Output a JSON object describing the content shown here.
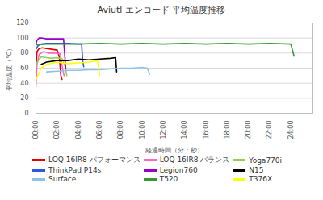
{
  "chart_data": {
    "type": "line",
    "title": "Aviutl エンコード 平均温度推移",
    "x_label": "経過時間（分：秒）",
    "y_label": "平均温度（℃）",
    "xlim": [
      0,
      26
    ],
    "ylim": [
      0,
      120
    ],
    "xticks": [
      {
        "value": 0,
        "label": "00:00"
      },
      {
        "value": 2,
        "label": "02:00"
      },
      {
        "value": 4,
        "label": "04:00"
      },
      {
        "value": 6,
        "label": "06:00"
      },
      {
        "value": 8,
        "label": "08:00"
      },
      {
        "value": 10,
        "label": "10:00"
      },
      {
        "value": 12,
        "label": "12:00"
      },
      {
        "value": 14,
        "label": "14:00"
      },
      {
        "value": 16,
        "label": "16:00"
      },
      {
        "value": 18,
        "label": "18:00"
      },
      {
        "value": 20,
        "label": "20:00"
      },
      {
        "value": 22,
        "label": "22:00"
      },
      {
        "value": 24,
        "label": "24:00"
      }
    ],
    "yticks": [
      0,
      20,
      40,
      60,
      80,
      100,
      120
    ],
    "grid": true,
    "legend": "bottom",
    "series": [
      {
        "name": "LOQ 16IR8 パフォーマンス",
        "color": "#e00000",
        "x": [
          0,
          0.1,
          0.3,
          0.6,
          1,
          1.5,
          2,
          2.2,
          2.35,
          2.45
        ],
        "values": [
          60,
          82,
          86,
          87,
          86,
          85,
          84,
          75,
          50,
          45
        ]
      },
      {
        "name": "LOQ 16IR8 バランス",
        "color": "#ff66cc",
        "x": [
          0,
          0.1,
          0.3,
          0.7,
          1.2,
          1.8,
          2.3,
          2.5,
          2.65
        ],
        "values": [
          35,
          65,
          78,
          82,
          80,
          80,
          79,
          60,
          50
        ]
      },
      {
        "name": "Yoga770i",
        "color": "#92d050",
        "x": [
          0,
          0.2,
          0.5,
          1,
          1.5,
          2,
          2.5,
          2.8,
          2.9
        ],
        "values": [
          62,
          70,
          75,
          74,
          73,
          74,
          72,
          60,
          50
        ]
      },
      {
        "name": "ThinkPad P14s",
        "color": "#2f55e6",
        "x": [
          0,
          0.2,
          0.5,
          1,
          2,
          3,
          4,
          4.3,
          4.4,
          4.5
        ],
        "values": [
          85,
          90,
          92,
          93,
          93,
          93,
          92,
          92,
          70,
          62
        ]
      },
      {
        "name": "Legion760",
        "color": "#9900cc",
        "x": [
          0,
          0.1,
          0.3,
          0.6,
          1,
          1.5,
          2,
          2.6,
          2.7,
          2.8
        ],
        "values": [
          92,
          97,
          100,
          100,
          99,
          99,
          99,
          99,
          80,
          60
        ]
      },
      {
        "name": "N15",
        "color": "#000000",
        "x": [
          0.5,
          1,
          2,
          3,
          4,
          5,
          6,
          7,
          7.5,
          7.6
        ],
        "values": [
          65,
          68,
          70,
          70,
          72,
          71,
          72,
          73,
          74,
          55
        ]
      },
      {
        "name": "Surface",
        "color": "#8fc1e6",
        "x": [
          1,
          2,
          3,
          4,
          5,
          6,
          7,
          8,
          9,
          10,
          10.5,
          10.7
        ],
        "values": [
          55,
          56,
          57,
          57,
          58,
          58,
          59,
          60,
          60,
          61,
          60,
          52
        ]
      },
      {
        "name": "T520",
        "color": "#339933",
        "x": [
          0,
          1,
          2,
          4,
          6,
          8,
          10,
          12,
          14,
          16,
          18,
          20,
          22,
          24,
          24.3
        ],
        "values": [
          91,
          92,
          92,
          92,
          93,
          92,
          93,
          92,
          93,
          92,
          93,
          92,
          93,
          92,
          76
        ]
      },
      {
        "name": "T376X",
        "color": "#ffff00",
        "x": [
          0,
          0.5,
          1,
          2,
          3,
          4,
          5,
          5.8,
          6.0
        ],
        "values": [
          45,
          60,
          65,
          68,
          66,
          67,
          68,
          70,
          50
        ]
      }
    ]
  }
}
